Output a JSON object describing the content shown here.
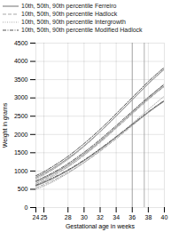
{
  "chart_data": {
    "type": "line",
    "xlabel": "Gestational age in weeks",
    "ylabel": "Weight in grams",
    "xlim": [
      24,
      40
    ],
    "ylim": [
      0,
      4500
    ],
    "xticks": [
      24,
      25,
      28,
      30,
      32,
      34,
      36,
      38,
      40
    ],
    "yticks": [
      0,
      500,
      1000,
      1500,
      2000,
      2500,
      3000,
      3500,
      4000,
      4500
    ],
    "grid": true,
    "legend": "upper left",
    "vlines": [
      36,
      37.5
    ],
    "x": [
      24,
      25,
      26,
      27,
      28,
      29,
      30,
      31,
      32,
      33,
      34,
      35,
      36,
      37,
      38,
      39,
      40
    ],
    "series": [
      {
        "name": "10th, 50th, 90th percentile Ferreiro",
        "color": "#888888",
        "line_style": "solid",
        "values": [
          590,
          680,
          780,
          890,
          1010,
          1140,
          1280,
          1430,
          1590,
          1750,
          1920,
          2090,
          2260,
          2430,
          2600,
          2760,
          2910
        ]
      },
      {
        "name": "10th, 50th, 90th percentile Ferreiro",
        "color": "#888888",
        "line_style": "solid",
        "values": [
          700,
          800,
          910,
          1030,
          1160,
          1310,
          1470,
          1640,
          1820,
          2010,
          2200,
          2400,
          2590,
          2790,
          2980,
          3160,
          3330
        ]
      },
      {
        "name": "10th, 50th, 90th percentile Ferreiro",
        "color": "#888888",
        "line_style": "solid",
        "values": [
          830,
          940,
          1060,
          1200,
          1350,
          1510,
          1690,
          1880,
          2080,
          2290,
          2510,
          2730,
          2950,
          3170,
          3390,
          3590,
          3790
        ]
      },
      {
        "name": "10th, 50th, 90th percentile Hadlock",
        "color": "#aaaaaa",
        "line_style": "dashed",
        "values": [
          540,
          630,
          730,
          840,
          960,
          1090,
          1230,
          1380,
          1540,
          1710,
          1880,
          2060,
          2240,
          2420,
          2600,
          2770,
          2930
        ]
      },
      {
        "name": "10th, 50th, 90th percentile Hadlock",
        "color": "#aaaaaa",
        "line_style": "dashed",
        "values": [
          660,
          760,
          870,
          990,
          1120,
          1270,
          1430,
          1600,
          1780,
          1970,
          2170,
          2360,
          2560,
          2760,
          2950,
          3140,
          3310
        ]
      },
      {
        "name": "10th, 50th, 90th percentile Hadlock",
        "color": "#aaaaaa",
        "line_style": "dashed",
        "values": [
          800,
          910,
          1030,
          1170,
          1320,
          1490,
          1670,
          1860,
          2070,
          2280,
          2500,
          2720,
          2950,
          3170,
          3390,
          3590,
          3780
        ]
      },
      {
        "name": "10th, 50th, 90th percentile Intergrowth",
        "color": "#aaaaaa",
        "line_style": "dotted",
        "values": [
          500,
          590,
          690,
          810,
          940,
          1080,
          1230,
          1390,
          1560,
          1740,
          1920,
          2110,
          2300,
          2490,
          2680,
          2870,
          3050
        ]
      },
      {
        "name": "10th, 50th, 90th percentile Intergrowth",
        "color": "#aaaaaa",
        "line_style": "dotted",
        "values": [
          630,
          730,
          840,
          970,
          1110,
          1260,
          1430,
          1610,
          1790,
          1990,
          2190,
          2390,
          2600,
          2800,
          3000,
          3200,
          3390
        ]
      },
      {
        "name": "10th, 50th, 90th percentile Intergrowth",
        "color": "#aaaaaa",
        "line_style": "dotted",
        "values": [
          780,
          890,
          1020,
          1160,
          1320,
          1490,
          1680,
          1870,
          2080,
          2290,
          2510,
          2730,
          2960,
          3180,
          3400,
          3610,
          3810
        ]
      },
      {
        "name": "10th, 50th, 90th percentile Modified Hadlock",
        "color": "#555555",
        "line_style": "dashdot",
        "values": [
          610,
          700,
          800,
          910,
          1030,
          1160,
          1300,
          1450,
          1610,
          1770,
          1940,
          2110,
          2280,
          2450,
          2620,
          2780,
          2930
        ]
      },
      {
        "name": "10th, 50th, 90th percentile Modified Hadlock",
        "color": "#555555",
        "line_style": "dashdot",
        "values": [
          730,
          830,
          940,
          1060,
          1200,
          1350,
          1510,
          1680,
          1860,
          2050,
          2240,
          2440,
          2630,
          2830,
          3020,
          3200,
          3370
        ]
      },
      {
        "name": "10th, 50th, 90th percentile Modified Hadlock",
        "color": "#555555",
        "line_style": "dashdot",
        "values": [
          870,
          980,
          1110,
          1250,
          1400,
          1570,
          1750,
          1940,
          2140,
          2350,
          2570,
          2790,
          3010,
          3230,
          3450,
          3650,
          3840
        ]
      }
    ]
  }
}
